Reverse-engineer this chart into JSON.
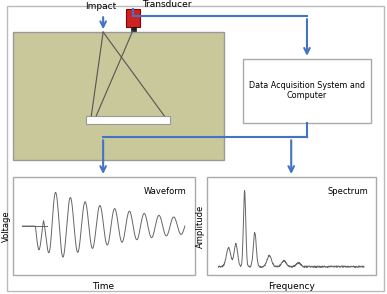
{
  "arrow_color": "#4472c4",
  "line_color": "#777777",
  "concrete_fill": "#c8c89a",
  "concrete_edge": "#999999",
  "transducer_red": "#cc2222",
  "box_edge": "#aaaaaa",
  "impact_label": "Impact",
  "transducer_label": "Transducer",
  "daq_label": "Data Acquisition System and\nComputer",
  "waveform_label": "Waveform",
  "spectrum_label": "Spectrum",
  "voltage_label": "Voltage",
  "amplitude_label": "Amplitude",
  "time_label": "Time",
  "frequency_label": "Frequency",
  "outer_border": true
}
